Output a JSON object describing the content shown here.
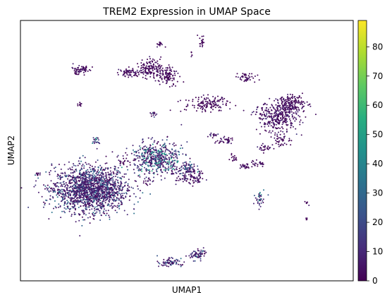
{
  "chart_data": {
    "type": "scatter",
    "title": "TREM2 Expression in UMAP Space",
    "xlabel": "UMAP1",
    "ylabel": "UMAP2",
    "xlim": [
      0,
      100
    ],
    "ylim": [
      0,
      100
    ],
    "grid": false,
    "legend": "none",
    "colormap": "viridis",
    "colorbar": {
      "min": 0,
      "max": 89,
      "ticks": [
        0,
        10,
        20,
        30,
        40,
        50,
        60,
        70,
        80
      ],
      "tick_labels": [
        "0",
        "10",
        "20",
        "30",
        "40",
        "50",
        "60",
        "70",
        "80"
      ]
    },
    "clusters": [
      {
        "cx": 21,
        "cy": 35,
        "rx": 10,
        "ry": 8,
        "n": 1700,
        "level": 14
      },
      {
        "cx": 41,
        "cy": 47,
        "rx": 7,
        "ry": 5.5,
        "n": 500,
        "level": 22
      },
      {
        "cx": 50,
        "cy": 43,
        "rx": 3,
        "ry": 2.5,
        "n": 80,
        "level": 16
      },
      {
        "cx": 51,
        "cy": 39.5,
        "rx": 4,
        "ry": 2.5,
        "n": 90,
        "level": 5
      },
      {
        "cx": 33,
        "cy": 80,
        "rx": 3,
        "ry": 1.5,
        "n": 70,
        "level": 4
      },
      {
        "cx": 39,
        "cy": 82,
        "rx": 3,
        "ry": 3,
        "n": 130,
        "level": 4
      },
      {
        "cx": 44,
        "cy": 79,
        "rx": 3,
        "ry": 3.5,
        "n": 120,
        "level": 3
      },
      {
        "cx": 18,
        "cy": 81,
        "rx": 2.7,
        "ry": 1.5,
        "n": 70,
        "level": 4
      },
      {
        "cx": 56,
        "cy": 68,
        "rx": 6,
        "ry": 3,
        "n": 140,
        "level": 3
      },
      {
        "cx": 40,
        "cy": 64,
        "rx": 1,
        "ry": 1,
        "n": 15,
        "level": 15
      },
      {
        "cx": 18,
        "cy": 68,
        "rx": 0.8,
        "ry": 0.6,
        "n": 10,
        "level": 3
      },
      {
        "cx": 42,
        "cy": 91,
        "rx": 1,
        "ry": 1,
        "n": 15,
        "level": 3
      },
      {
        "cx": 54.5,
        "cy": 92,
        "rx": 0.7,
        "ry": 2,
        "n": 20,
        "level": 3
      },
      {
        "cx": 51.5,
        "cy": 87,
        "rx": 0.4,
        "ry": 1,
        "n": 6,
        "level": 3
      },
      {
        "cx": 68,
        "cy": 78,
        "rx": 2.5,
        "ry": 1.8,
        "n": 45,
        "level": 4
      },
      {
        "cx": 77,
        "cy": 63,
        "rx": 6,
        "ry": 5,
        "n": 320,
        "level": 6
      },
      {
        "cx": 81.5,
        "cy": 68,
        "rx": 4,
        "ry": 3,
        "n": 180,
        "level": 4
      },
      {
        "cx": 78,
        "cy": 54,
        "rx": 3,
        "ry": 2.5,
        "n": 45,
        "level": 3
      },
      {
        "cx": 73,
        "cy": 51,
        "rx": 2,
        "ry": 1.2,
        "n": 25,
        "level": 5
      },
      {
        "cx": 62,
        "cy": 54,
        "rx": 2.5,
        "ry": 1.5,
        "n": 35,
        "level": 4
      },
      {
        "cx": 58,
        "cy": 56,
        "rx": 1.5,
        "ry": 1.2,
        "n": 15,
        "level": 6
      },
      {
        "cx": 67.5,
        "cy": 44,
        "rx": 1.5,
        "ry": 1,
        "n": 25,
        "level": 4
      },
      {
        "cx": 71.5,
        "cy": 45,
        "rx": 2.5,
        "ry": 1,
        "n": 25,
        "level": 4
      },
      {
        "cx": 64,
        "cy": 47,
        "rx": 1.5,
        "ry": 1.5,
        "n": 15,
        "level": 3
      },
      {
        "cx": 22.5,
        "cy": 54,
        "rx": 1.5,
        "ry": 1.5,
        "n": 20,
        "level": 24
      },
      {
        "cx": 5,
        "cy": 41,
        "rx": 1.2,
        "ry": 0.5,
        "n": 10,
        "level": 3
      },
      {
        "cx": 72,
        "cy": 32,
        "rx": 1.5,
        "ry": 3,
        "n": 35,
        "level": 22
      },
      {
        "cx": 45,
        "cy": 7,
        "rx": 3,
        "ry": 1.5,
        "n": 70,
        "level": 14
      },
      {
        "cx": 53,
        "cy": 10,
        "rx": 2.5,
        "ry": 1.8,
        "n": 70,
        "level": 16
      },
      {
        "cx": 86,
        "cy": 30,
        "rx": 0.5,
        "ry": 0.6,
        "n": 6,
        "level": 3
      },
      {
        "cx": 86,
        "cy": 24,
        "rx": 0.5,
        "ry": 0.5,
        "n": 5,
        "level": 3
      },
      {
        "cx": 101,
        "cy": 80,
        "rx": 0.6,
        "ry": 0.4,
        "n": 6,
        "level": 3
      },
      {
        "cx": 38,
        "cy": 38,
        "rx": 1.5,
        "ry": 1.5,
        "n": 15,
        "level": 5
      },
      {
        "cx": 31,
        "cy": 46,
        "rx": 2,
        "ry": 1.5,
        "n": 20,
        "level": 4
      }
    ]
  }
}
